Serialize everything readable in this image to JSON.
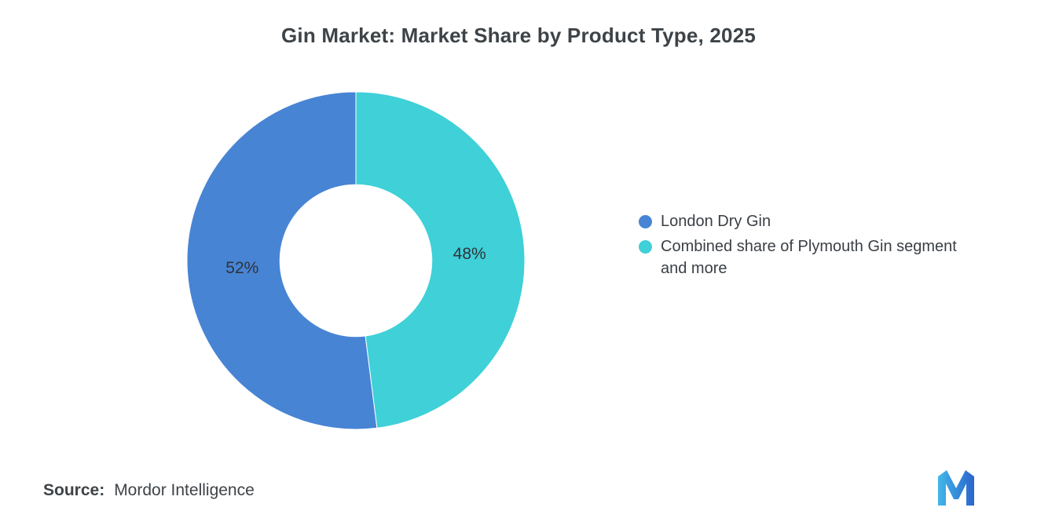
{
  "source": {
    "label": "Source:",
    "value": "Mordor Intelligence"
  },
  "chart_data": {
    "type": "pie",
    "donut": true,
    "title": "Gin Market: Market Share by Product Type, 2025",
    "categories": [
      "London Dry Gin",
      "Combined share of Plymouth Gin segment and more"
    ],
    "values": [
      52,
      48
    ],
    "labels": [
      "52%",
      "48%"
    ],
    "colors": [
      "#4784d4",
      "#3fd0d8"
    ],
    "start_angle": 172.8,
    "legend_position": "right",
    "inner_radius_ratio": 0.45,
    "background": "#ffffff"
  },
  "logo_colors": [
    "#41b7e8",
    "#2b64cd"
  ]
}
